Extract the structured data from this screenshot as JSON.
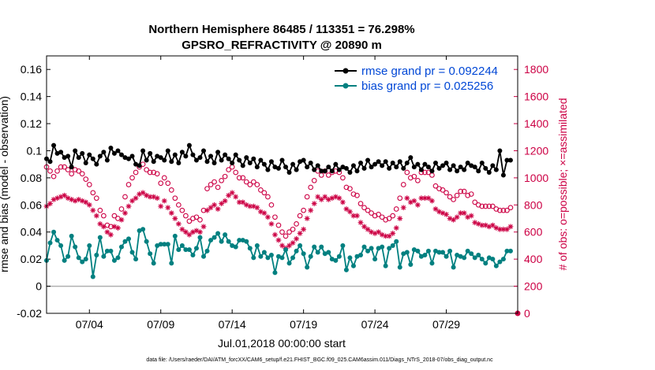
{
  "chart_data": {
    "type": "line",
    "title_line1": "Northern Hemisphere 86485 / 113351 = 76.298%",
    "title_line2": "GPSRO_REFRACTIVITY @ 20890 m",
    "xlabel": "Jul.01,2018 00:00:00 start",
    "ylabel_left": "rmse and bias (model - observation)",
    "ylabel_right": "# of obs: o=possible; ×=assimilated",
    "footnote": "data file: /Users/raeder/DAI/ATM_forcXX/CAM6_setup/f.e21.FHIST_BGC.f09_025.CAM6assim.011/Diags_NTrS_2018-07/obs_diag_output.nc",
    "x_start": 0.0,
    "x_step": 0.25,
    "xlim": [
      0,
      33
    ],
    "ylim_left": [
      -0.02,
      0.17
    ],
    "ylim_right": [
      0,
      1900
    ],
    "xticks": [
      3,
      8,
      13,
      18,
      23,
      28
    ],
    "xtick_labels": [
      "07/04",
      "07/09",
      "07/14",
      "07/19",
      "07/24",
      "07/29"
    ],
    "yticks_left": [
      -0.02,
      0,
      0.02,
      0.04,
      0.06,
      0.08,
      0.1,
      0.12,
      0.14,
      0.16
    ],
    "ytick_labels_left": [
      "-0.02",
      "0",
      "0.02",
      "0.04",
      "0.06",
      "0.08",
      "0.1",
      "0.12",
      "0.14",
      "0.16"
    ],
    "yticks_right": [
      0,
      200,
      400,
      600,
      800,
      1000,
      1200,
      1400,
      1600,
      1800
    ],
    "ytick_labels_right": [
      "0",
      "200",
      "400",
      "600",
      "800",
      "1000",
      "1200",
      "1400",
      "1600",
      "1800"
    ],
    "colors": {
      "rmse": "#000000",
      "bias": "#008080",
      "obs": "#cc0044",
      "legend_text": "#0047d6",
      "zero_line": "#b0b0b0"
    },
    "series": [
      {
        "name": "rmse grand pr = 0.092244",
        "key": "rmse",
        "values": [
          0.094,
          0.092,
          0.104,
          0.098,
          0.099,
          0.095,
          0.096,
          0.088,
          0.1,
          0.095,
          0.098,
          0.091,
          0.097,
          0.094,
          0.09,
          0.096,
          0.099,
          0.093,
          0.102,
          0.098,
          0.1,
          0.097,
          0.095,
          0.094,
          0.096,
          0.09,
          0.089,
          0.1,
          0.093,
          0.098,
          0.092,
          0.096,
          0.095,
          0.093,
          0.1,
          0.092,
          0.097,
          0.091,
          0.099,
          0.096,
          0.104,
          0.097,
          0.093,
          0.095,
          0.1,
          0.092,
          0.096,
          0.091,
          0.099,
          0.093,
          0.097,
          0.094,
          0.091,
          0.097,
          0.093,
          0.089,
          0.095,
          0.091,
          0.094,
          0.088,
          0.093,
          0.09,
          0.086,
          0.092,
          0.088,
          0.087,
          0.093,
          0.088,
          0.084,
          0.09,
          0.086,
          0.092,
          0.093,
          0.088,
          0.091,
          0.086,
          0.089,
          0.085,
          0.085,
          0.088,
          0.085,
          0.09,
          0.086,
          0.088,
          0.087,
          0.084,
          0.089,
          0.085,
          0.091,
          0.087,
          0.093,
          0.088,
          0.09,
          0.092,
          0.089,
          0.092,
          0.087,
          0.091,
          0.088,
          0.092,
          0.087,
          0.091,
          0.095,
          0.088,
          0.09,
          0.086,
          0.09,
          0.088,
          0.085,
          0.091,
          0.087,
          0.089,
          0.091,
          0.086,
          0.089,
          0.085,
          0.088,
          0.086,
          0.091,
          0.089,
          0.088,
          0.085,
          0.091,
          0.087,
          0.084,
          0.089,
          0.086,
          0.1,
          0.082,
          0.093,
          0.093
        ]
      },
      {
        "name": "bias grand pr = 0.025256",
        "key": "bias",
        "values": [
          0.019,
          0.032,
          0.04,
          0.034,
          0.03,
          0.019,
          0.022,
          0.037,
          0.029,
          0.021,
          0.018,
          0.02,
          0.03,
          0.007,
          0.023,
          0.036,
          0.022,
          0.026,
          0.026,
          0.019,
          0.021,
          0.029,
          0.033,
          0.035,
          0.025,
          0.02,
          0.041,
          0.042,
          0.033,
          0.024,
          0.017,
          0.03,
          0.031,
          0.031,
          0.031,
          0.017,
          0.037,
          0.027,
          0.03,
          0.027,
          0.027,
          0.023,
          0.028,
          0.036,
          0.022,
          0.026,
          0.034,
          0.036,
          0.039,
          0.033,
          0.038,
          0.033,
          0.03,
          0.029,
          0.034,
          0.034,
          0.033,
          0.028,
          0.021,
          0.03,
          0.022,
          0.025,
          0.021,
          0.023,
          0.01,
          0.022,
          0.021,
          0.027,
          0.017,
          0.021,
          0.026,
          0.03,
          0.024,
          0.014,
          0.022,
          0.029,
          0.025,
          0.029,
          0.024,
          0.025,
          0.02,
          0.019,
          0.022,
          0.03,
          0.012,
          0.021,
          0.015,
          0.022,
          0.023,
          0.029,
          0.026,
          0.028,
          0.02,
          0.028,
          0.029,
          0.015,
          0.028,
          0.03,
          0.033,
          0.014,
          0.024,
          0.025,
          0.016,
          0.027,
          0.026,
          0.022,
          0.023,
          0.026,
          0.017,
          0.026,
          0.025,
          0.025,
          0.022,
          0.026,
          0.014,
          0.023,
          0.022,
          0.021,
          0.026,
          0.024,
          0.021,
          0.023,
          0.02,
          0.017,
          0.021,
          0.02,
          0.015,
          0.018,
          0.02,
          0.026,
          0.026
        ]
      },
      {
        "name": "possible",
        "key": "possible",
        "values": [
          1080,
          1050,
          1010,
          1050,
          1080,
          1080,
          1060,
          1030,
          1060,
          1050,
          1030,
          990,
          950,
          890,
          850,
          760,
          720,
          650,
          640,
          720,
          700,
          770,
          860,
          950,
          1000,
          1040,
          1080,
          1100,
          1060,
          1040,
          1040,
          1030,
          960,
          1000,
          960,
          910,
          850,
          800,
          760,
          720,
          680,
          700,
          710,
          690,
          760,
          920,
          950,
          970,
          930,
          980,
          1010,
          1060,
          1080,
          1040,
          1000,
          1000,
          970,
          950,
          970,
          950,
          910,
          890,
          860,
          800,
          710,
          650,
          600,
          570,
          600,
          620,
          660,
          720,
          760,
          860,
          930,
          980,
          1050,
          1020,
          1050,
          1020,
          1040,
          1050,
          1040,
          1000,
          930,
          920,
          880,
          870,
          810,
          780,
          760,
          740,
          720,
          730,
          710,
          690,
          700,
          720,
          770,
          850,
          950,
          1040,
          1000,
          1010,
          980,
          1040,
          1040,
          1040,
          1020,
          940,
          920,
          910,
          890,
          860,
          840,
          870,
          900,
          900,
          870,
          880,
          820,
          800,
          790,
          790,
          790,
          790,
          770,
          760,
          760,
          760,
          780
        ]
      },
      {
        "name": "assimilated",
        "key": "assimilated",
        "values": [
          790,
          810,
          840,
          850,
          860,
          870,
          850,
          840,
          830,
          840,
          830,
          820,
          800,
          760,
          720,
          660,
          640,
          600,
          580,
          640,
          630,
          690,
          740,
          790,
          830,
          850,
          880,
          890,
          870,
          860,
          860,
          850,
          790,
          830,
          780,
          740,
          700,
          660,
          620,
          600,
          580,
          600,
          610,
          600,
          640,
          760,
          780,
          800,
          770,
          810,
          830,
          870,
          890,
          860,
          820,
          820,
          800,
          790,
          790,
          780,
          750,
          740,
          710,
          660,
          580,
          540,
          500,
          480,
          500,
          520,
          550,
          590,
          620,
          700,
          760,
          810,
          860,
          840,
          860,
          840,
          850,
          860,
          850,
          820,
          770,
          750,
          720,
          720,
          670,
          640,
          620,
          600,
          590,
          600,
          580,
          570,
          570,
          590,
          630,
          700,
          780,
          850,
          820,
          830,
          800,
          850,
          850,
          850,
          830,
          770,
          750,
          740,
          730,
          700,
          690,
          710,
          740,
          740,
          710,
          720,
          670,
          660,
          650,
          650,
          640,
          650,
          630,
          620,
          620,
          620,
          640
        ]
      }
    ]
  }
}
